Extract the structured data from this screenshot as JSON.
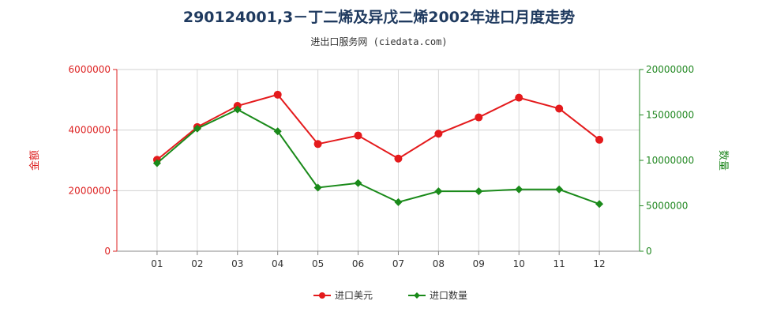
{
  "chart_data": {
    "type": "line",
    "title": "290124001,3－丁二烯及异戊二烯2002年进口月度走势",
    "subtitle": "进出口服务网 (ciedata.com)",
    "categories": [
      "01",
      "02",
      "03",
      "04",
      "05",
      "06",
      "07",
      "08",
      "09",
      "10",
      "11",
      "12"
    ],
    "left_axis": {
      "label": "金额",
      "ylim": [
        0,
        6000000
      ],
      "ticks": [
        "0",
        "2000000",
        "4000000",
        "6000000"
      ],
      "color": "#dd2222"
    },
    "right_axis": {
      "label": "数量",
      "ylim": [
        0,
        20000000
      ],
      "ticks": [
        "0",
        "5000000",
        "10000000",
        "15000000",
        "20000000"
      ],
      "color": "#228822"
    },
    "series": [
      {
        "name": "进口美元",
        "axis": "left",
        "color": "#e41a1c",
        "marker": "circle",
        "values": [
          3020000,
          4100000,
          4800000,
          5170000,
          3540000,
          3820000,
          3060000,
          3880000,
          4420000,
          5070000,
          4710000,
          3680000
        ]
      },
      {
        "name": "进口数量",
        "axis": "right",
        "color": "#1a8a1a",
        "marker": "diamond",
        "values": [
          9700000,
          13500000,
          15600000,
          13200000,
          7000000,
          7500000,
          5400000,
          6600000,
          6600000,
          6800000,
          6800000,
          5200000
        ]
      }
    ],
    "grid": true,
    "legend": "bottom-center"
  }
}
